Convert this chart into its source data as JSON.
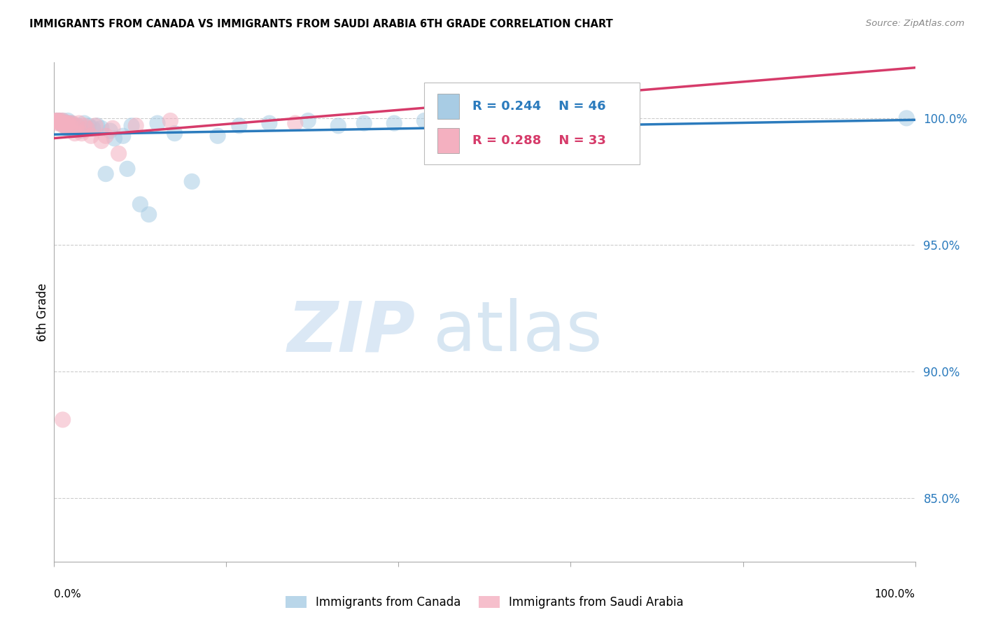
{
  "title": "IMMIGRANTS FROM CANADA VS IMMIGRANTS FROM SAUDI ARABIA 6TH GRADE CORRELATION CHART",
  "source": "Source: ZipAtlas.com",
  "ylabel": "6th Grade",
  "R_blue": 0.244,
  "N_blue": 46,
  "R_pink": 0.288,
  "N_pink": 33,
  "blue_color": "#a8cce4",
  "pink_color": "#f4b0c0",
  "trend_blue": "#2b7bbd",
  "trend_pink": "#d63b6a",
  "yticks": [
    0.85,
    0.9,
    0.95,
    1.0
  ],
  "ytick_labels": [
    "85.0%",
    "90.0%",
    "95.0%",
    "100.0%"
  ],
  "xlim": [
    0.0,
    1.0
  ],
  "ylim": [
    0.825,
    1.022
  ],
  "blue_scatter_x": [
    0.003,
    0.006,
    0.008,
    0.01,
    0.012,
    0.013,
    0.015,
    0.016,
    0.018,
    0.019,
    0.02,
    0.022,
    0.024,
    0.025,
    0.027,
    0.03,
    0.032,
    0.035,
    0.038,
    0.04,
    0.045,
    0.05,
    0.055,
    0.06,
    0.065,
    0.07,
    0.08,
    0.085,
    0.09,
    0.1,
    0.11,
    0.12,
    0.14,
    0.16,
    0.19,
    0.215,
    0.25,
    0.295,
    0.33,
    0.36,
    0.395,
    0.43,
    0.5,
    0.56,
    0.64,
    0.99
  ],
  "blue_scatter_y": [
    0.999,
    0.999,
    0.998,
    0.999,
    0.998,
    0.997,
    0.998,
    0.999,
    0.998,
    0.997,
    0.998,
    0.997,
    0.997,
    0.996,
    0.997,
    0.996,
    0.995,
    0.998,
    0.996,
    0.997,
    0.996,
    0.997,
    0.996,
    0.978,
    0.995,
    0.992,
    0.993,
    0.98,
    0.997,
    0.966,
    0.962,
    0.998,
    0.994,
    0.975,
    0.993,
    0.997,
    0.998,
    0.999,
    0.997,
    0.998,
    0.998,
    0.999,
    0.998,
    0.999,
    0.999,
    1.0
  ],
  "pink_scatter_x": [
    0.002,
    0.003,
    0.004,
    0.005,
    0.006,
    0.007,
    0.008,
    0.009,
    0.01,
    0.011,
    0.012,
    0.013,
    0.015,
    0.015,
    0.017,
    0.019,
    0.021,
    0.024,
    0.026,
    0.029,
    0.032,
    0.035,
    0.038,
    0.043,
    0.048,
    0.055,
    0.06,
    0.068,
    0.075,
    0.01,
    0.095,
    0.135,
    0.28
  ],
  "pink_scatter_y": [
    0.999,
    0.999,
    0.998,
    0.999,
    0.998,
    0.999,
    0.998,
    0.998,
    0.999,
    0.997,
    0.998,
    0.997,
    0.998,
    0.996,
    0.998,
    0.997,
    0.998,
    0.994,
    0.997,
    0.998,
    0.994,
    0.997,
    0.996,
    0.993,
    0.997,
    0.991,
    0.993,
    0.996,
    0.986,
    0.881,
    0.997,
    0.999,
    0.998
  ],
  "legend_blue_label": "Immigrants from Canada",
  "legend_pink_label": "Immigrants from Saudi Arabia",
  "background_color": "#ffffff"
}
